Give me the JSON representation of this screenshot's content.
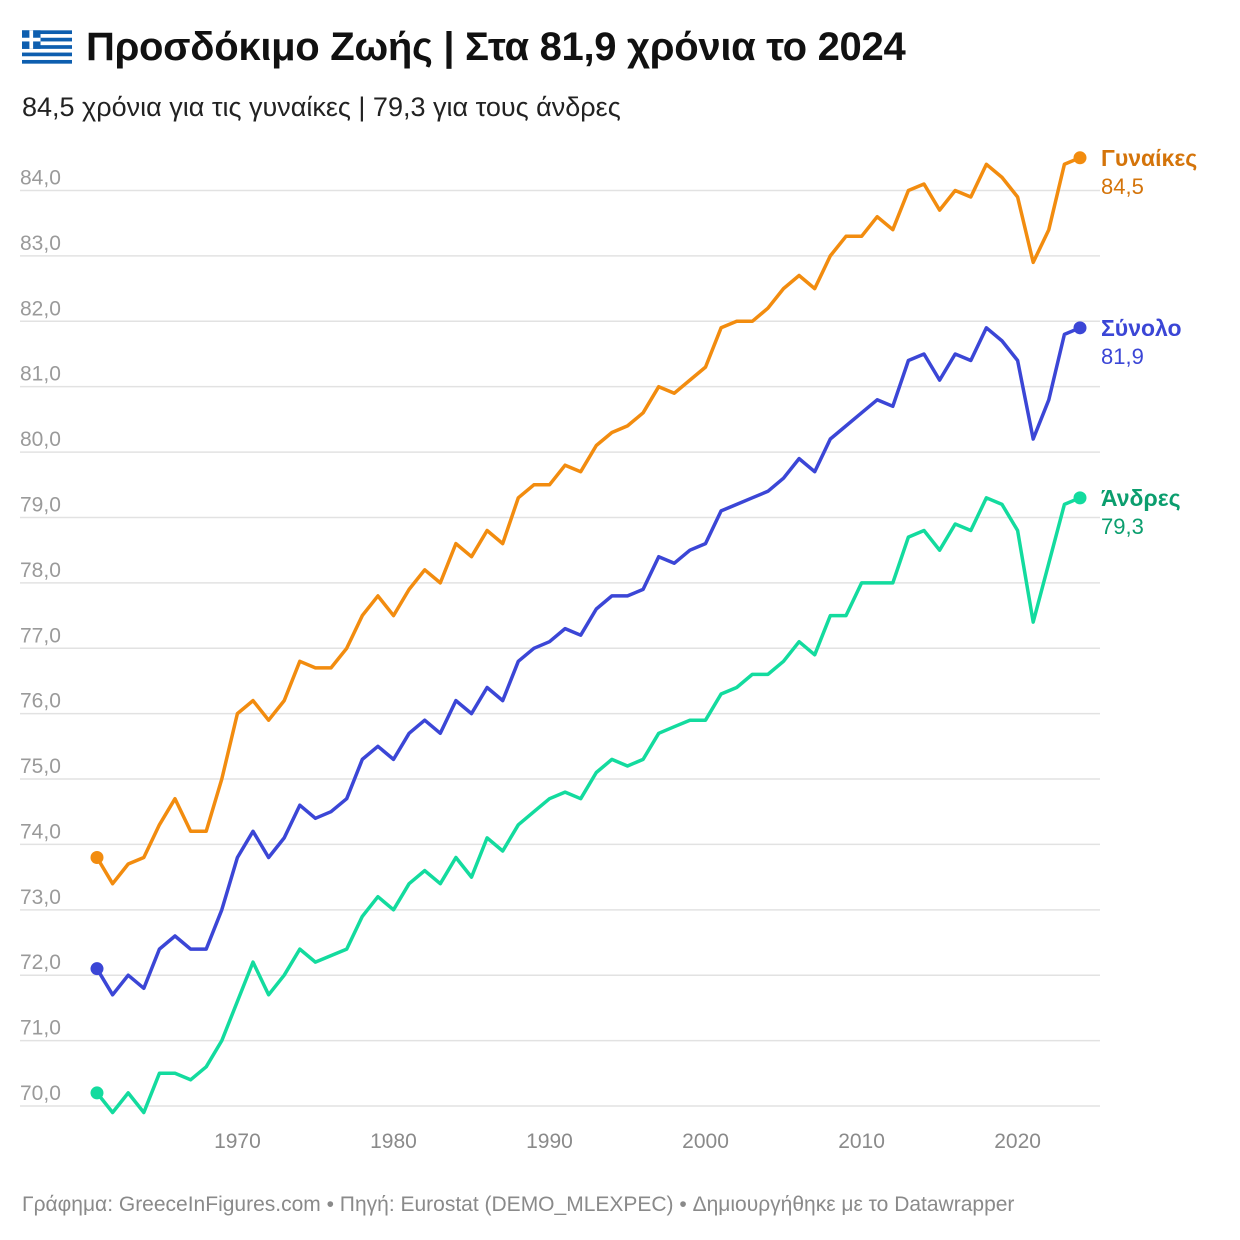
{
  "header": {
    "title": "Προσδόκιμο Ζωής | Στα 81,9 χρόνια το 2024",
    "subtitle": "84,5 χρόνια για τις γυναίκες | 79,3 για τους άνδρες",
    "flag_icon": "greece-flag-icon"
  },
  "footer": {
    "text": "Γράφημα: GreeceInFigures.com • Πηγή: Eurostat (DEMO_MLEXPEC) • Δημιουργήθηκε με το Datawrapper"
  },
  "colors": {
    "women": "#f28c0f",
    "total": "#3b46d6",
    "men": "#13db9e",
    "women_label": "#d4740a",
    "total_label": "#3b46d6",
    "men_label": "#0b9e6e",
    "grid": "#e2e2e2"
  },
  "chart_data": {
    "type": "line",
    "x": [
      1961,
      1962,
      1963,
      1964,
      1965,
      1966,
      1967,
      1968,
      1969,
      1970,
      1971,
      1972,
      1973,
      1974,
      1975,
      1976,
      1977,
      1978,
      1979,
      1980,
      1981,
      1982,
      1983,
      1984,
      1985,
      1986,
      1987,
      1988,
      1989,
      1990,
      1991,
      1992,
      1993,
      1994,
      1995,
      1996,
      1997,
      1998,
      1999,
      2000,
      2001,
      2002,
      2003,
      2004,
      2005,
      2006,
      2007,
      2008,
      2009,
      2010,
      2011,
      2012,
      2013,
      2014,
      2015,
      2016,
      2017,
      2018,
      2019,
      2020,
      2021,
      2022,
      2023,
      2024
    ],
    "series": [
      {
        "name": "Γυναίκες",
        "value_label": "84,5",
        "color_key": "women",
        "values": [
          73.8,
          73.4,
          73.7,
          73.8,
          74.3,
          74.7,
          74.2,
          74.2,
          75.0,
          76.0,
          76.2,
          75.9,
          76.2,
          76.8,
          76.7,
          76.7,
          77.0,
          77.5,
          77.8,
          77.5,
          77.9,
          78.2,
          78.0,
          78.6,
          78.4,
          78.8,
          78.6,
          79.3,
          79.5,
          79.5,
          79.8,
          79.7,
          80.1,
          80.3,
          80.4,
          80.6,
          81.0,
          80.9,
          81.1,
          81.3,
          81.9,
          82.0,
          82.0,
          82.2,
          82.5,
          82.7,
          82.5,
          83.0,
          83.3,
          83.3,
          83.6,
          83.4,
          84.0,
          84.1,
          83.7,
          84.0,
          83.9,
          84.4,
          84.2,
          83.9,
          82.9,
          83.4,
          84.4,
          84.5
        ]
      },
      {
        "name": "Σύνολο",
        "value_label": "81,9",
        "color_key": "total",
        "values": [
          72.1,
          71.7,
          72.0,
          71.8,
          72.4,
          72.6,
          72.4,
          72.4,
          73.0,
          73.8,
          74.2,
          73.8,
          74.1,
          74.6,
          74.4,
          74.5,
          74.7,
          75.3,
          75.5,
          75.3,
          75.7,
          75.9,
          75.7,
          76.2,
          76.0,
          76.4,
          76.2,
          76.8,
          77.0,
          77.1,
          77.3,
          77.2,
          77.6,
          77.8,
          77.8,
          77.9,
          78.4,
          78.3,
          78.5,
          78.6,
          79.1,
          79.2,
          79.3,
          79.4,
          79.6,
          79.9,
          79.7,
          80.2,
          80.4,
          80.6,
          80.8,
          80.7,
          81.4,
          81.5,
          81.1,
          81.5,
          81.4,
          81.9,
          81.7,
          81.4,
          80.2,
          80.8,
          81.8,
          81.9
        ]
      },
      {
        "name": "Άνδρες",
        "value_label": "79,3",
        "color_key": "men",
        "values": [
          70.2,
          69.9,
          70.2,
          69.9,
          70.5,
          70.5,
          70.4,
          70.6,
          71.0,
          71.6,
          72.2,
          71.7,
          72.0,
          72.4,
          72.2,
          72.3,
          72.4,
          72.9,
          73.2,
          73.0,
          73.4,
          73.6,
          73.4,
          73.8,
          73.5,
          74.1,
          73.9,
          74.3,
          74.5,
          74.7,
          74.8,
          74.7,
          75.1,
          75.3,
          75.2,
          75.3,
          75.7,
          75.8,
          75.9,
          75.9,
          76.3,
          76.4,
          76.6,
          76.6,
          76.8,
          77.1,
          76.9,
          77.5,
          77.5,
          78.0,
          78.0,
          78.0,
          78.7,
          78.8,
          78.5,
          78.9,
          78.8,
          79.3,
          79.2,
          78.8,
          77.4,
          78.3,
          79.2,
          79.3
        ]
      }
    ],
    "y_ticks": [
      "70,0",
      "71,0",
      "72,0",
      "73,0",
      "74,0",
      "75,0",
      "76,0",
      "77,0",
      "78,0",
      "79,0",
      "80,0",
      "81,0",
      "82,0",
      "83,0",
      "84,0"
    ],
    "y_tick_values": [
      70,
      71,
      72,
      73,
      74,
      75,
      76,
      77,
      78,
      79,
      80,
      81,
      82,
      83,
      84
    ],
    "x_ticks": [
      "1970",
      "1980",
      "1990",
      "2000",
      "2010",
      "2020"
    ],
    "x_tick_values": [
      1970,
      1980,
      1990,
      2000,
      2010,
      2020
    ],
    "ylim": [
      70,
      84.5
    ],
    "xlim": [
      1961,
      2024
    ],
    "grid": true,
    "legend": "inline-right"
  }
}
